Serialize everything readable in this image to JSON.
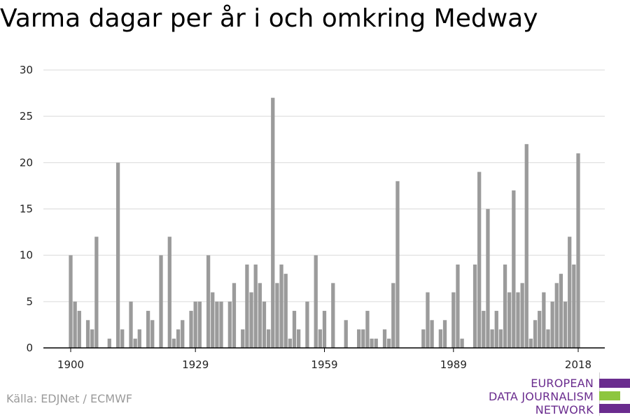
{
  "chart_data": {
    "type": "bar",
    "title": "Varma dagar per år i och omkring Medway",
    "x_tick_labels": [
      "1900",
      "1929",
      "1959",
      "1989",
      "2018"
    ],
    "y_tick_labels": [
      "0",
      "5",
      "10",
      "15",
      "20",
      "25",
      "30"
    ],
    "ylim": [
      0,
      30
    ],
    "xlim": [
      1900,
      2018
    ],
    "grid": true,
    "legend": "none",
    "bar_color": "#9b9b9b",
    "x": [
      1900,
      1901,
      1902,
      1903,
      1904,
      1905,
      1906,
      1907,
      1908,
      1909,
      1910,
      1911,
      1912,
      1913,
      1914,
      1915,
      1916,
      1917,
      1918,
      1919,
      1920,
      1921,
      1922,
      1923,
      1924,
      1925,
      1926,
      1927,
      1928,
      1929,
      1930,
      1931,
      1932,
      1933,
      1934,
      1935,
      1936,
      1937,
      1938,
      1939,
      1940,
      1941,
      1942,
      1943,
      1944,
      1945,
      1946,
      1947,
      1948,
      1949,
      1950,
      1951,
      1952,
      1953,
      1954,
      1955,
      1956,
      1957,
      1958,
      1959,
      1960,
      1961,
      1962,
      1963,
      1964,
      1965,
      1966,
      1967,
      1968,
      1969,
      1970,
      1971,
      1972,
      1973,
      1974,
      1975,
      1976,
      1977,
      1978,
      1979,
      1980,
      1981,
      1982,
      1983,
      1984,
      1985,
      1986,
      1987,
      1988,
      1989,
      1990,
      1991,
      1992,
      1993,
      1994,
      1995,
      1996,
      1997,
      1998,
      1999,
      2000,
      2001,
      2002,
      2003,
      2004,
      2005,
      2006,
      2007,
      2008,
      2009,
      2010,
      2011,
      2012,
      2013,
      2014,
      2015,
      2016,
      2017,
      2018
    ],
    "values": [
      10,
      5,
      4,
      0,
      3,
      2,
      12,
      0,
      0,
      1,
      0,
      20,
      2,
      0,
      5,
      1,
      2,
      0,
      4,
      3,
      0,
      10,
      0,
      12,
      1,
      2,
      3,
      0,
      4,
      5,
      5,
      0,
      10,
      6,
      5,
      5,
      0,
      5,
      7,
      0,
      2,
      9,
      6,
      9,
      7,
      5,
      2,
      27,
      7,
      9,
      8,
      1,
      4,
      2,
      0,
      5,
      0,
      10,
      2,
      4,
      0,
      7,
      0,
      0,
      3,
      0,
      0,
      2,
      2,
      4,
      1,
      1,
      0,
      2,
      1,
      7,
      18,
      0,
      0,
      0,
      0,
      0,
      2,
      6,
      3,
      0,
      2,
      3,
      0,
      6,
      9,
      1,
      0,
      0,
      9,
      19,
      4,
      15,
      2,
      4,
      2,
      9,
      6,
      17,
      6,
      7,
      22,
      1,
      3,
      4,
      6,
      2,
      5,
      7,
      8,
      5,
      12,
      9,
      21
    ]
  },
  "source": "Källa: EDJNet / ECMWF",
  "logo": {
    "lines": [
      "EUROPEAN",
      "DATA JOURNALISM",
      "NETWORK"
    ],
    "colors": [
      "#6a2c8e",
      "#8dc63f",
      "#6a2c8e"
    ]
  }
}
